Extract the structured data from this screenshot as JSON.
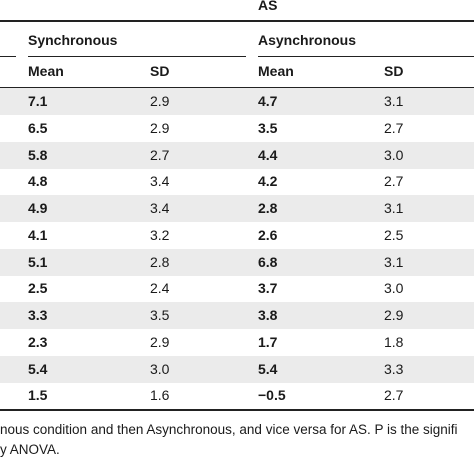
{
  "top_group": "AS",
  "sync_header": "Synchronous",
  "async_header": "Asynchronous",
  "col_mean": "Mean",
  "col_sd": "SD",
  "rows": [
    {
      "sync_mean": "7.1",
      "sync_sd": "2.9",
      "async_mean": "4.7",
      "async_sd": "3.1"
    },
    {
      "sync_mean": "6.5",
      "sync_sd": "2.9",
      "async_mean": "3.5",
      "async_sd": "2.7"
    },
    {
      "sync_mean": "5.8",
      "sync_sd": "2.7",
      "async_mean": "4.4",
      "async_sd": "3.0"
    },
    {
      "sync_mean": "4.8",
      "sync_sd": "3.4",
      "async_mean": "4.2",
      "async_sd": "2.7"
    },
    {
      "sync_mean": "4.9",
      "sync_sd": "3.4",
      "async_mean": "2.8",
      "async_sd": "3.1"
    },
    {
      "sync_mean": "4.1",
      "sync_sd": "3.2",
      "async_mean": "2.6",
      "async_sd": "2.5"
    },
    {
      "sync_mean": "5.1",
      "sync_sd": "2.8",
      "async_mean": "6.8",
      "async_sd": "3.1"
    },
    {
      "sync_mean": "2.5",
      "sync_sd": "2.4",
      "async_mean": "3.7",
      "async_sd": "3.0"
    },
    {
      "sync_mean": "3.3",
      "sync_sd": "3.5",
      "async_mean": "3.8",
      "async_sd": "2.9"
    },
    {
      "sync_mean": "2.3",
      "sync_sd": "2.9",
      "async_mean": "1.7",
      "async_sd": "1.8"
    },
    {
      "sync_mean": "5.4",
      "sync_sd": "3.0",
      "async_mean": "5.4",
      "async_sd": "3.3"
    },
    {
      "sync_mean": "1.5",
      "sync_sd": "1.6",
      "async_mean": "−0.5",
      "async_sd": "2.7"
    }
  ],
  "footnote_line1": "nous condition and then Asynchronous, and vice versa for AS. P is the signifi",
  "footnote_line2": "y ANOVA."
}
